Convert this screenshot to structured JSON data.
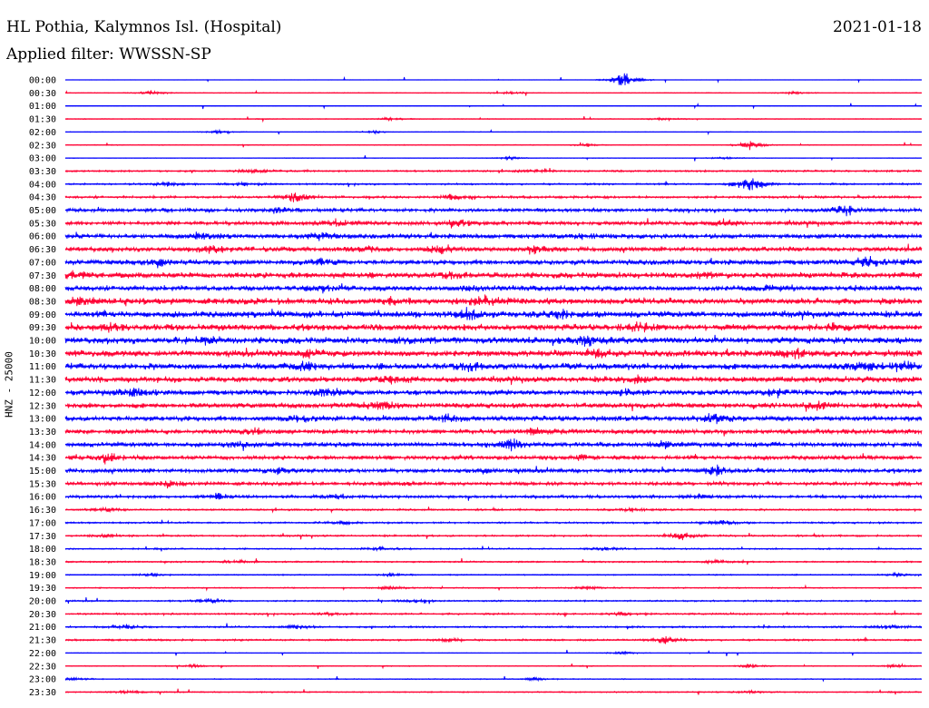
{
  "header": {
    "station": "HL Pothia, Kalymnos Isl. (Hospital)",
    "date": "2021-01-18",
    "filter": "Applied filter: WWSSN-SP"
  },
  "chart_data": {
    "type": "line",
    "ylabel": "HNZ - 25000",
    "series_colors": [
      "#0000ff",
      "#ff0033"
    ],
    "rows": [
      {
        "time": "00:00",
        "events": [
          [
            0.653,
            3.0
          ]
        ],
        "noise": 0.05
      },
      {
        "time": "00:30",
        "events": [
          [
            0.1,
            0.8
          ],
          [
            0.52,
            0.6
          ],
          [
            0.85,
            0.5
          ]
        ],
        "noise": 0.12
      },
      {
        "time": "01:00",
        "events": [],
        "noise": 0.08
      },
      {
        "time": "01:30",
        "events": [
          [
            0.38,
            0.7
          ],
          [
            0.7,
            0.6
          ]
        ],
        "noise": 0.12
      },
      {
        "time": "02:00",
        "events": [
          [
            0.18,
            0.6
          ],
          [
            0.36,
            0.5
          ]
        ],
        "noise": 0.1
      },
      {
        "time": "02:30",
        "events": [
          [
            0.61,
            0.5
          ],
          [
            0.8,
            1.6
          ]
        ],
        "noise": 0.14
      },
      {
        "time": "03:00",
        "events": [
          [
            0.52,
            0.6
          ],
          [
            0.77,
            0.5
          ]
        ],
        "noise": 0.1
      },
      {
        "time": "03:30",
        "events": [
          [
            0.22,
            0.8
          ],
          [
            0.55,
            0.5
          ]
        ],
        "noise": 0.3
      },
      {
        "time": "04:00",
        "events": [
          [
            0.12,
            0.8
          ],
          [
            0.21,
            0.8
          ],
          [
            0.8,
            3.5
          ]
        ],
        "noise": 0.3
      },
      {
        "time": "04:30",
        "events": [
          [
            0.27,
            2.2
          ],
          [
            0.45,
            1.0
          ]
        ],
        "noise": 0.4
      },
      {
        "time": "05:00",
        "events": [
          [
            0.25,
            1.0
          ],
          [
            0.91,
            2.0
          ]
        ],
        "noise": 0.6
      },
      {
        "time": "05:30",
        "events": [
          [
            0.32,
            1.5
          ],
          [
            0.46,
            1.3
          ],
          [
            0.77,
            1.0
          ]
        ],
        "noise": 0.7
      },
      {
        "time": "06:00",
        "events": [
          [
            0.16,
            1.2
          ],
          [
            0.3,
            1.3
          ],
          [
            0.6,
            1.0
          ]
        ],
        "noise": 0.8
      },
      {
        "time": "06:30",
        "events": [
          [
            0.17,
            1.6
          ],
          [
            0.35,
            1.3
          ],
          [
            0.44,
            1.8
          ],
          [
            0.55,
            1.0
          ]
        ],
        "noise": 0.8
      },
      {
        "time": "07:00",
        "events": [
          [
            0.11,
            1.8
          ],
          [
            0.3,
            0.9
          ],
          [
            0.94,
            2.0
          ]
        ],
        "noise": 0.9
      },
      {
        "time": "07:30",
        "events": [
          [
            0.01,
            1.2
          ],
          [
            0.45,
            1.3
          ],
          [
            0.74,
            1.0
          ]
        ],
        "noise": 1.0
      },
      {
        "time": "08:00",
        "events": [
          [
            0.3,
            0.9
          ],
          [
            0.47,
            1.1
          ],
          [
            0.82,
            1.0
          ]
        ],
        "noise": 0.9
      },
      {
        "time": "08:30",
        "events": [
          [
            0.02,
            1.2
          ],
          [
            0.38,
            1.2
          ],
          [
            0.49,
            1.8
          ]
        ],
        "noise": 1.1
      },
      {
        "time": "09:00",
        "events": [
          [
            0.47,
            1.8
          ],
          [
            0.58,
            1.3
          ]
        ],
        "noise": 1.1
      },
      {
        "time": "09:30",
        "events": [
          [
            0.05,
            1.3
          ],
          [
            0.67,
            1.2
          ],
          [
            0.9,
            1.0
          ]
        ],
        "noise": 1.1
      },
      {
        "time": "10:00",
        "events": [
          [
            0.16,
            1.3
          ],
          [
            0.4,
            1.1
          ],
          [
            0.61,
            1.8
          ]
        ],
        "noise": 1.1
      },
      {
        "time": "10:30",
        "events": [
          [
            0.28,
            1.1
          ],
          [
            0.62,
            1.1
          ],
          [
            0.85,
            1.5
          ]
        ],
        "noise": 1.1
      },
      {
        "time": "11:00",
        "events": [
          [
            0.28,
            1.4
          ],
          [
            0.47,
            1.8
          ],
          [
            0.93,
            1.6
          ],
          [
            0.98,
            1.6
          ]
        ],
        "noise": 1.1
      },
      {
        "time": "11:30",
        "events": [
          [
            0.38,
            1.5
          ],
          [
            0.67,
            1.1
          ]
        ],
        "noise": 1.0
      },
      {
        "time": "12:00",
        "events": [
          [
            0.08,
            1.6
          ],
          [
            0.3,
            1.1
          ],
          [
            0.65,
            1.1
          ],
          [
            0.83,
            1.2
          ]
        ],
        "noise": 0.9
      },
      {
        "time": "12:30",
        "events": [
          [
            0.37,
            1.4
          ],
          [
            0.88,
            1.2
          ]
        ],
        "noise": 0.9
      },
      {
        "time": "13:00",
        "events": [
          [
            0.27,
            1.1
          ],
          [
            0.45,
            1.0
          ],
          [
            0.76,
            1.8
          ]
        ],
        "noise": 0.9
      },
      {
        "time": "13:30",
        "events": [
          [
            0.22,
            0.9
          ],
          [
            0.55,
            0.9
          ]
        ],
        "noise": 0.8
      },
      {
        "time": "14:00",
        "events": [
          [
            0.2,
            1.0
          ],
          [
            0.52,
            2.1
          ],
          [
            0.7,
            1.0
          ]
        ],
        "noise": 0.8
      },
      {
        "time": "14:30",
        "events": [
          [
            0.05,
            2.2
          ],
          [
            0.6,
            1.0
          ]
        ],
        "noise": 0.7
      },
      {
        "time": "15:00",
        "events": [
          [
            0.25,
            1.0
          ],
          [
            0.49,
            1.0
          ],
          [
            0.76,
            1.8
          ]
        ],
        "noise": 0.7
      },
      {
        "time": "15:30",
        "events": [
          [
            0.12,
            1.0
          ],
          [
            0.4,
            0.8
          ]
        ],
        "noise": 0.6
      },
      {
        "time": "16:00",
        "events": [
          [
            0.18,
            1.0
          ],
          [
            0.32,
            0.9
          ],
          [
            0.74,
            0.8
          ]
        ],
        "noise": 0.5
      },
      {
        "time": "16:30",
        "events": [
          [
            0.05,
            0.8
          ],
          [
            0.66,
            0.8
          ]
        ],
        "noise": 0.3
      },
      {
        "time": "17:00",
        "events": [
          [
            0.32,
            0.8
          ],
          [
            0.77,
            0.9
          ]
        ],
        "noise": 0.3
      },
      {
        "time": "17:30",
        "events": [
          [
            0.05,
            0.7
          ],
          [
            0.72,
            1.5
          ]
        ],
        "noise": 0.3
      },
      {
        "time": "18:00",
        "events": [
          [
            0.37,
            0.7
          ],
          [
            0.63,
            0.7
          ]
        ],
        "noise": 0.25
      },
      {
        "time": "18:30",
        "events": [
          [
            0.2,
            0.7
          ],
          [
            0.76,
            0.6
          ]
        ],
        "noise": 0.25
      },
      {
        "time": "19:00",
        "events": [
          [
            0.1,
            0.6
          ],
          [
            0.38,
            0.6
          ],
          [
            0.97,
            0.6
          ]
        ],
        "noise": 0.2
      },
      {
        "time": "19:30",
        "events": [
          [
            0.38,
            0.6
          ],
          [
            0.61,
            0.7
          ]
        ],
        "noise": 0.2
      },
      {
        "time": "20:00",
        "events": [
          [
            0.17,
            0.9
          ],
          [
            0.41,
            0.6
          ]
        ],
        "noise": 0.25
      },
      {
        "time": "20:30",
        "events": [
          [
            0.31,
            0.6
          ],
          [
            0.65,
            0.7
          ]
        ],
        "noise": 0.3
      },
      {
        "time": "21:00",
        "events": [
          [
            0.07,
            0.8
          ],
          [
            0.27,
            0.7
          ],
          [
            0.96,
            0.7
          ]
        ],
        "noise": 0.3
      },
      {
        "time": "21:30",
        "events": [
          [
            0.7,
            1.4
          ],
          [
            0.45,
            0.6
          ]
        ],
        "noise": 0.3
      },
      {
        "time": "22:00",
        "events": [
          [
            0.65,
            0.6
          ]
        ],
        "noise": 0.1
      },
      {
        "time": "22:30",
        "events": [
          [
            0.15,
            0.5
          ],
          [
            0.8,
            0.7
          ],
          [
            0.97,
            0.6
          ]
        ],
        "noise": 0.15
      },
      {
        "time": "23:00",
        "events": [
          [
            0.01,
            0.7
          ],
          [
            0.55,
            0.6
          ]
        ],
        "noise": 0.15
      },
      {
        "time": "23:30",
        "events": [
          [
            0.07,
            0.8
          ],
          [
            0.8,
            0.6
          ]
        ],
        "noise": 0.2
      }
    ]
  }
}
